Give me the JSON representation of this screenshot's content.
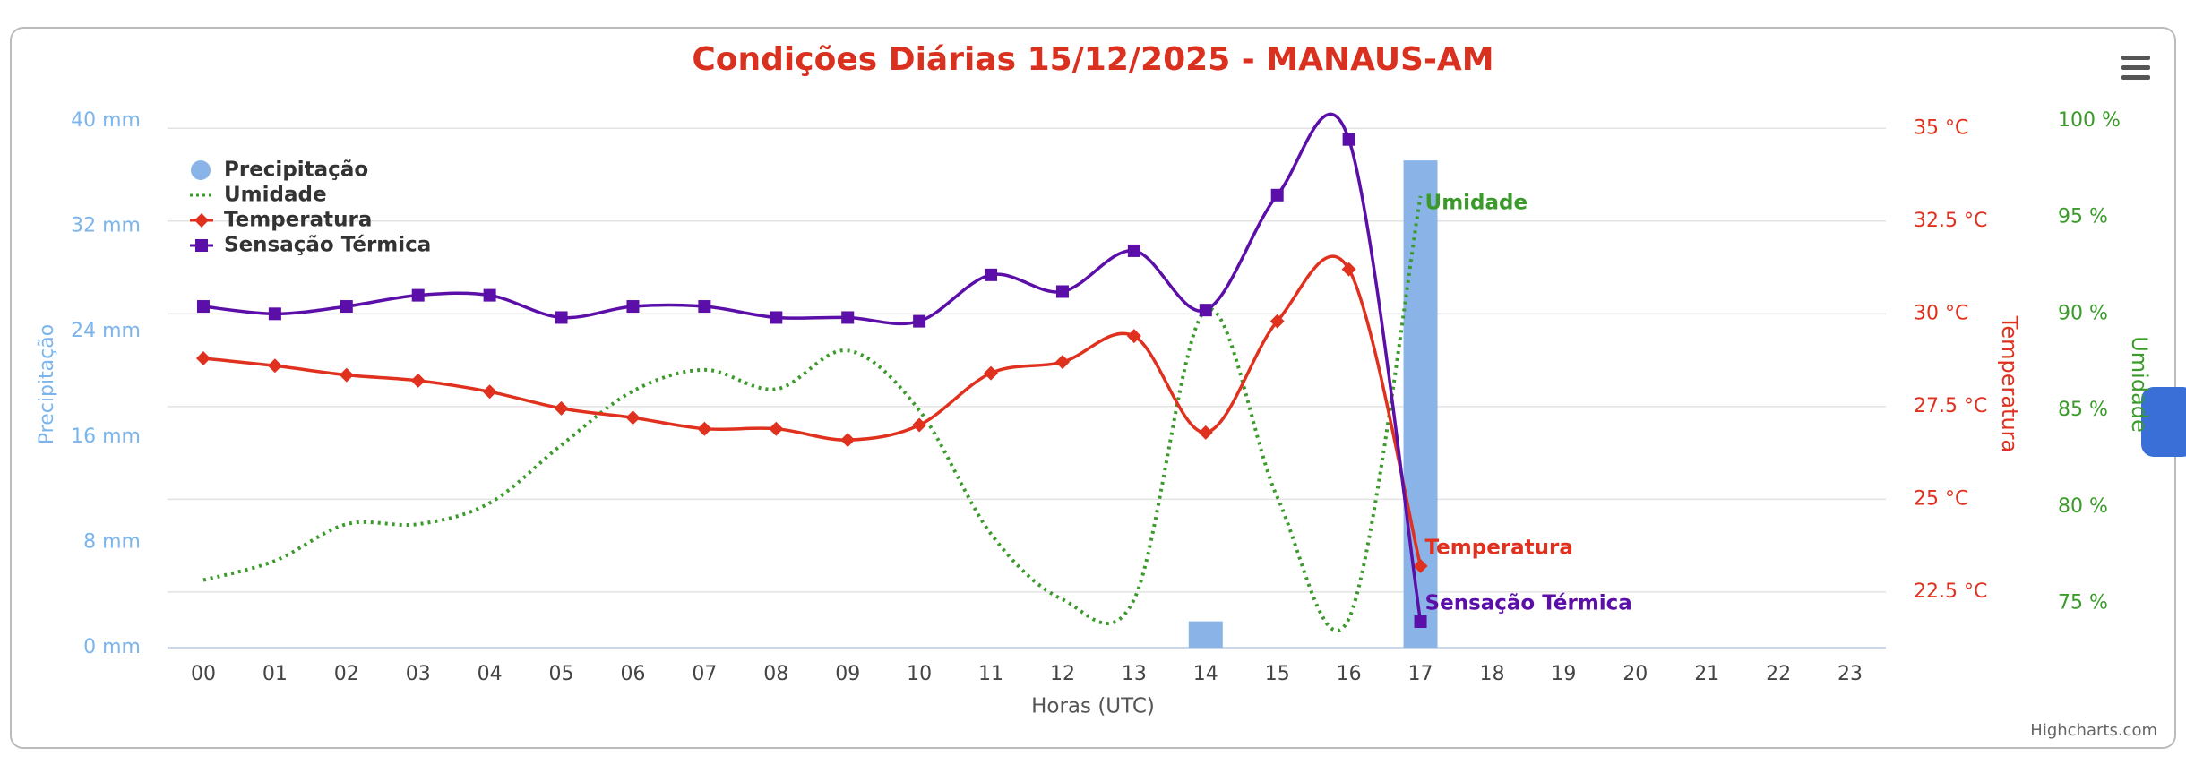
{
  "chart_data": {
    "type": "combo",
    "title": "Condições Diárias 15/12/2025 - MANAUS-AM",
    "x_label": "Horas (UTC)",
    "y_label": "Precipitação",
    "y2_label": "Temperatura",
    "y3_label": "Umidade",
    "credit": "Highcharts.com",
    "categories": [
      "00",
      "01",
      "02",
      "03",
      "04",
      "05",
      "06",
      "07",
      "08",
      "09",
      "10",
      "11",
      "12",
      "13",
      "14",
      "15",
      "16",
      "17",
      "18",
      "19",
      "20",
      "21",
      "22",
      "23"
    ],
    "ylim": [
      0,
      40
    ],
    "yticks": [
      {
        "value": 0,
        "label": "0 mm"
      },
      {
        "value": 8,
        "label": "8 mm"
      },
      {
        "value": 16,
        "label": "16 mm"
      },
      {
        "value": 24,
        "label": "24 mm"
      },
      {
        "value": 32,
        "label": "32 mm"
      },
      {
        "value": 40,
        "label": "40 mm"
      }
    ],
    "y2lim": [
      21.0,
      35.2
    ],
    "y2ticks": [
      {
        "value": 22.5,
        "label": "22.5 °C"
      },
      {
        "value": 25,
        "label": "25 °C"
      },
      {
        "value": 27.5,
        "label": "27.5 °C"
      },
      {
        "value": 30,
        "label": "30 °C"
      },
      {
        "value": 32.5,
        "label": "32.5 °C"
      },
      {
        "value": 35,
        "label": "35 °C"
      }
    ],
    "y3lim": [
      72.7,
      100
    ],
    "y3ticks": [
      {
        "value": 75,
        "label": "75 %"
      },
      {
        "value": 80,
        "label": "80 %"
      },
      {
        "value": 85,
        "label": "85 %"
      },
      {
        "value": 90,
        "label": "90 %"
      },
      {
        "value": 95,
        "label": "95 %"
      },
      {
        "value": 100,
        "label": "100 %"
      }
    ],
    "grid": true,
    "legend": "upper left",
    "series": [
      {
        "name": "Precipitação",
        "type": "column",
        "axis": "y",
        "color": "#8ab4e8",
        "values": [
          0,
          0,
          0,
          0,
          0,
          0,
          0,
          0,
          0,
          0,
          0,
          0,
          0,
          0,
          2,
          0,
          0,
          37,
          null,
          null,
          null,
          null,
          null,
          null
        ]
      },
      {
        "name": "Umidade",
        "type": "dotted",
        "axis": "y3",
        "color": "#3a9a2a",
        "values": [
          76.2,
          77.2,
          79.1,
          79.1,
          80.2,
          83.2,
          86.0,
          87.1,
          86.1,
          88.1,
          85.0,
          78.6,
          75.2,
          75.2,
          90.2,
          80.5,
          74.2,
          96.1,
          null,
          null,
          null,
          null,
          null,
          null
        ]
      },
      {
        "name": "Temperatura",
        "type": "spline",
        "marker": "diamond",
        "axis": "y2",
        "color": "#e0301e",
        "values": [
          28.8,
          28.6,
          28.35,
          28.2,
          27.9,
          27.45,
          27.2,
          26.9,
          26.9,
          26.6,
          27.0,
          28.4,
          28.7,
          29.4,
          26.8,
          29.8,
          31.2,
          23.2,
          null,
          null,
          null,
          null,
          null,
          null
        ]
      },
      {
        "name": "Sensação Térmica",
        "type": "spline",
        "marker": "square",
        "axis": "y2",
        "color": "#5b0fa8",
        "values": [
          30.2,
          30.0,
          30.2,
          30.5,
          30.5,
          29.9,
          30.2,
          30.2,
          29.9,
          29.9,
          29.8,
          31.05,
          30.6,
          31.7,
          30.1,
          33.2,
          34.7,
          21.7,
          null,
          null,
          null,
          null,
          null,
          null
        ]
      }
    ]
  }
}
